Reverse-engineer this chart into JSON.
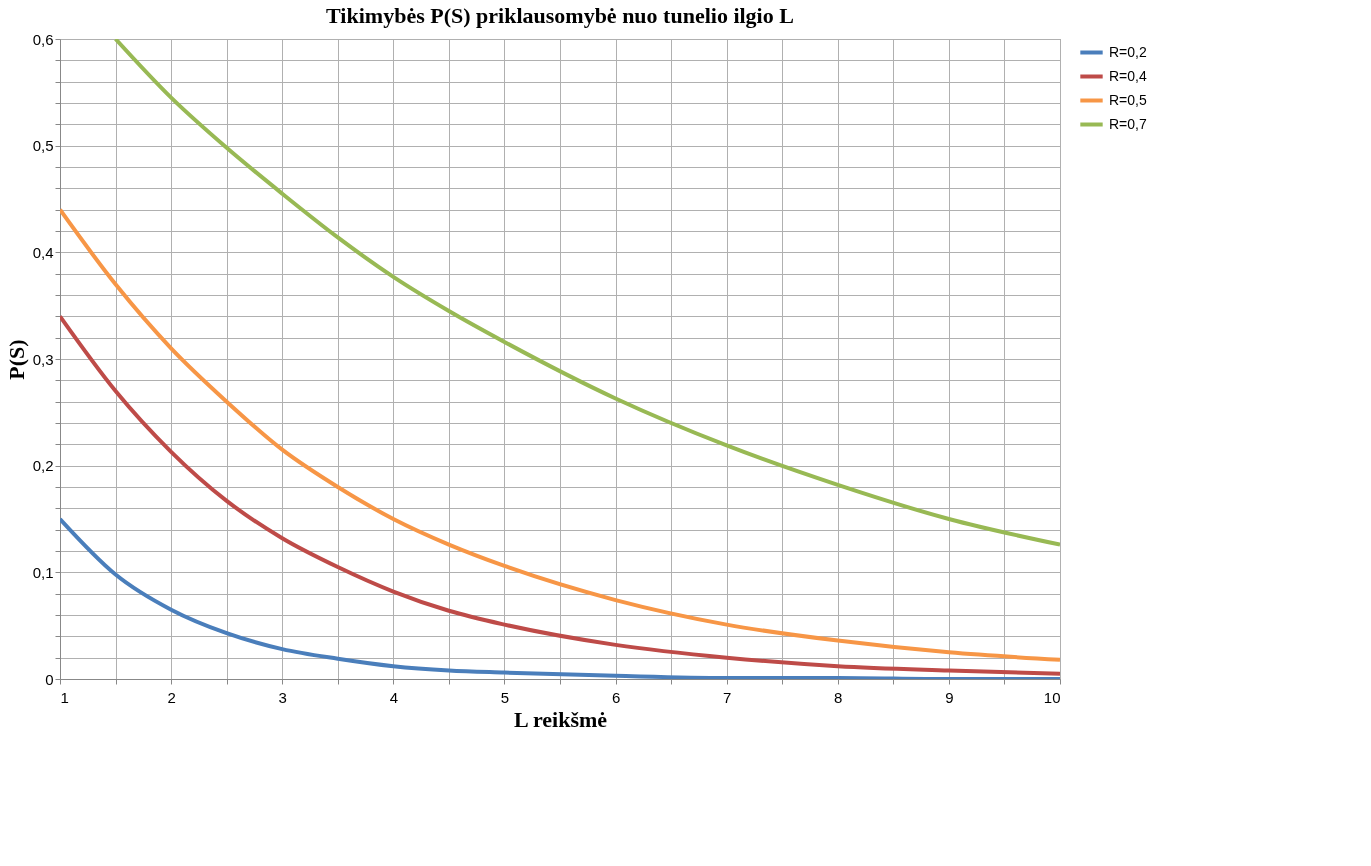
{
  "chart_data": {
    "type": "line",
    "title": "Tikimybės P(S) priklausomybė nuo tunelio ilgio L",
    "xlabel": "L reikšmė",
    "ylabel": "P(S)",
    "x": [
      1,
      1.5,
      2,
      2.5,
      3,
      3.5,
      4,
      4.5,
      5,
      6,
      7,
      8,
      9,
      10
    ],
    "series": [
      {
        "name": "R=0,2",
        "color": "#4a7ebb",
        "values": [
          0.15,
          0.098,
          0.065,
          0.043,
          0.028,
          0.019,
          0.012,
          0.008,
          0.006,
          0.003,
          0.001,
          0.001,
          0.0,
          0.0
        ]
      },
      {
        "name": "R=0,4",
        "color": "#be4b48",
        "values": [
          0.34,
          0.27,
          0.213,
          0.167,
          0.132,
          0.105,
          0.082,
          0.064,
          0.051,
          0.032,
          0.02,
          0.012,
          0.008,
          0.005
        ]
      },
      {
        "name": "R=0,5",
        "color": "#f79646",
        "values": [
          0.44,
          0.37,
          0.31,
          0.26,
          0.215,
          0.18,
          0.15,
          0.126,
          0.106,
          0.074,
          0.051,
          0.036,
          0.025,
          0.018
        ]
      },
      {
        "name": "R=0,7",
        "color": "#98b954",
        "x": [
          1.5,
          2,
          2.5,
          3,
          3.5,
          4,
          4.5,
          5,
          6,
          7,
          8,
          9,
          10
        ],
        "values": [
          0.6,
          0.545,
          0.498,
          0.455,
          0.414,
          0.377,
          0.345,
          0.316,
          0.263,
          0.219,
          0.182,
          0.15,
          0.126
        ]
      }
    ],
    "xlim": [
      1,
      10
    ],
    "xticks": [
      1,
      {
        "value": 1.5,
        "label": null
      },
      2,
      {
        "value": 2.5,
        "label": null
      },
      3,
      {
        "value": 3.5,
        "label": null
      },
      4,
      {
        "value": 4.5,
        "label": null
      },
      5,
      {
        "value": 5.5,
        "label": null
      },
      6,
      {
        "value": 6.5,
        "label": null
      },
      7,
      {
        "value": 7.5,
        "label": null
      },
      8,
      {
        "value": 8.5,
        "label": null
      },
      9,
      {
        "value": 9.5,
        "label": null
      },
      10
    ],
    "ylim": [
      0,
      0.6
    ],
    "yticks": [
      0,
      {
        "value": 0.02,
        "label": null
      },
      {
        "value": 0.04,
        "label": null
      },
      {
        "value": 0.06,
        "label": null
      },
      {
        "value": 0.08,
        "label": null
      },
      {
        "value": 0.1,
        "label": "0,1"
      },
      {
        "value": 0.12,
        "label": null
      },
      {
        "value": 0.14,
        "label": null
      },
      {
        "value": 0.16,
        "label": null
      },
      {
        "value": 0.18,
        "label": null
      },
      {
        "value": 0.2,
        "label": "0,2"
      },
      {
        "value": 0.22,
        "label": null
      },
      {
        "value": 0.24,
        "label": null
      },
      {
        "value": 0.26,
        "label": null
      },
      {
        "value": 0.28,
        "label": null
      },
      {
        "value": 0.3,
        "label": "0,3"
      },
      {
        "value": 0.32,
        "label": null
      },
      {
        "value": 0.34,
        "label": null
      },
      {
        "value": 0.36,
        "label": null
      },
      {
        "value": 0.38,
        "label": null
      },
      {
        "value": 0.4,
        "label": "0,4"
      },
      {
        "value": 0.42,
        "label": null
      },
      {
        "value": 0.44,
        "label": null
      },
      {
        "value": 0.46,
        "label": null
      },
      {
        "value": 0.48,
        "label": null
      },
      {
        "value": 0.5,
        "label": "0,5"
      },
      {
        "value": 0.52,
        "label": null
      },
      {
        "value": 0.54,
        "label": null
      },
      {
        "value": 0.56,
        "label": null
      },
      {
        "value": 0.58,
        "label": null
      },
      {
        "value": 0.6,
        "label": "0,6"
      }
    ],
    "grid": true,
    "legend": "right",
    "marker": "none",
    "line_style": "solid"
  }
}
